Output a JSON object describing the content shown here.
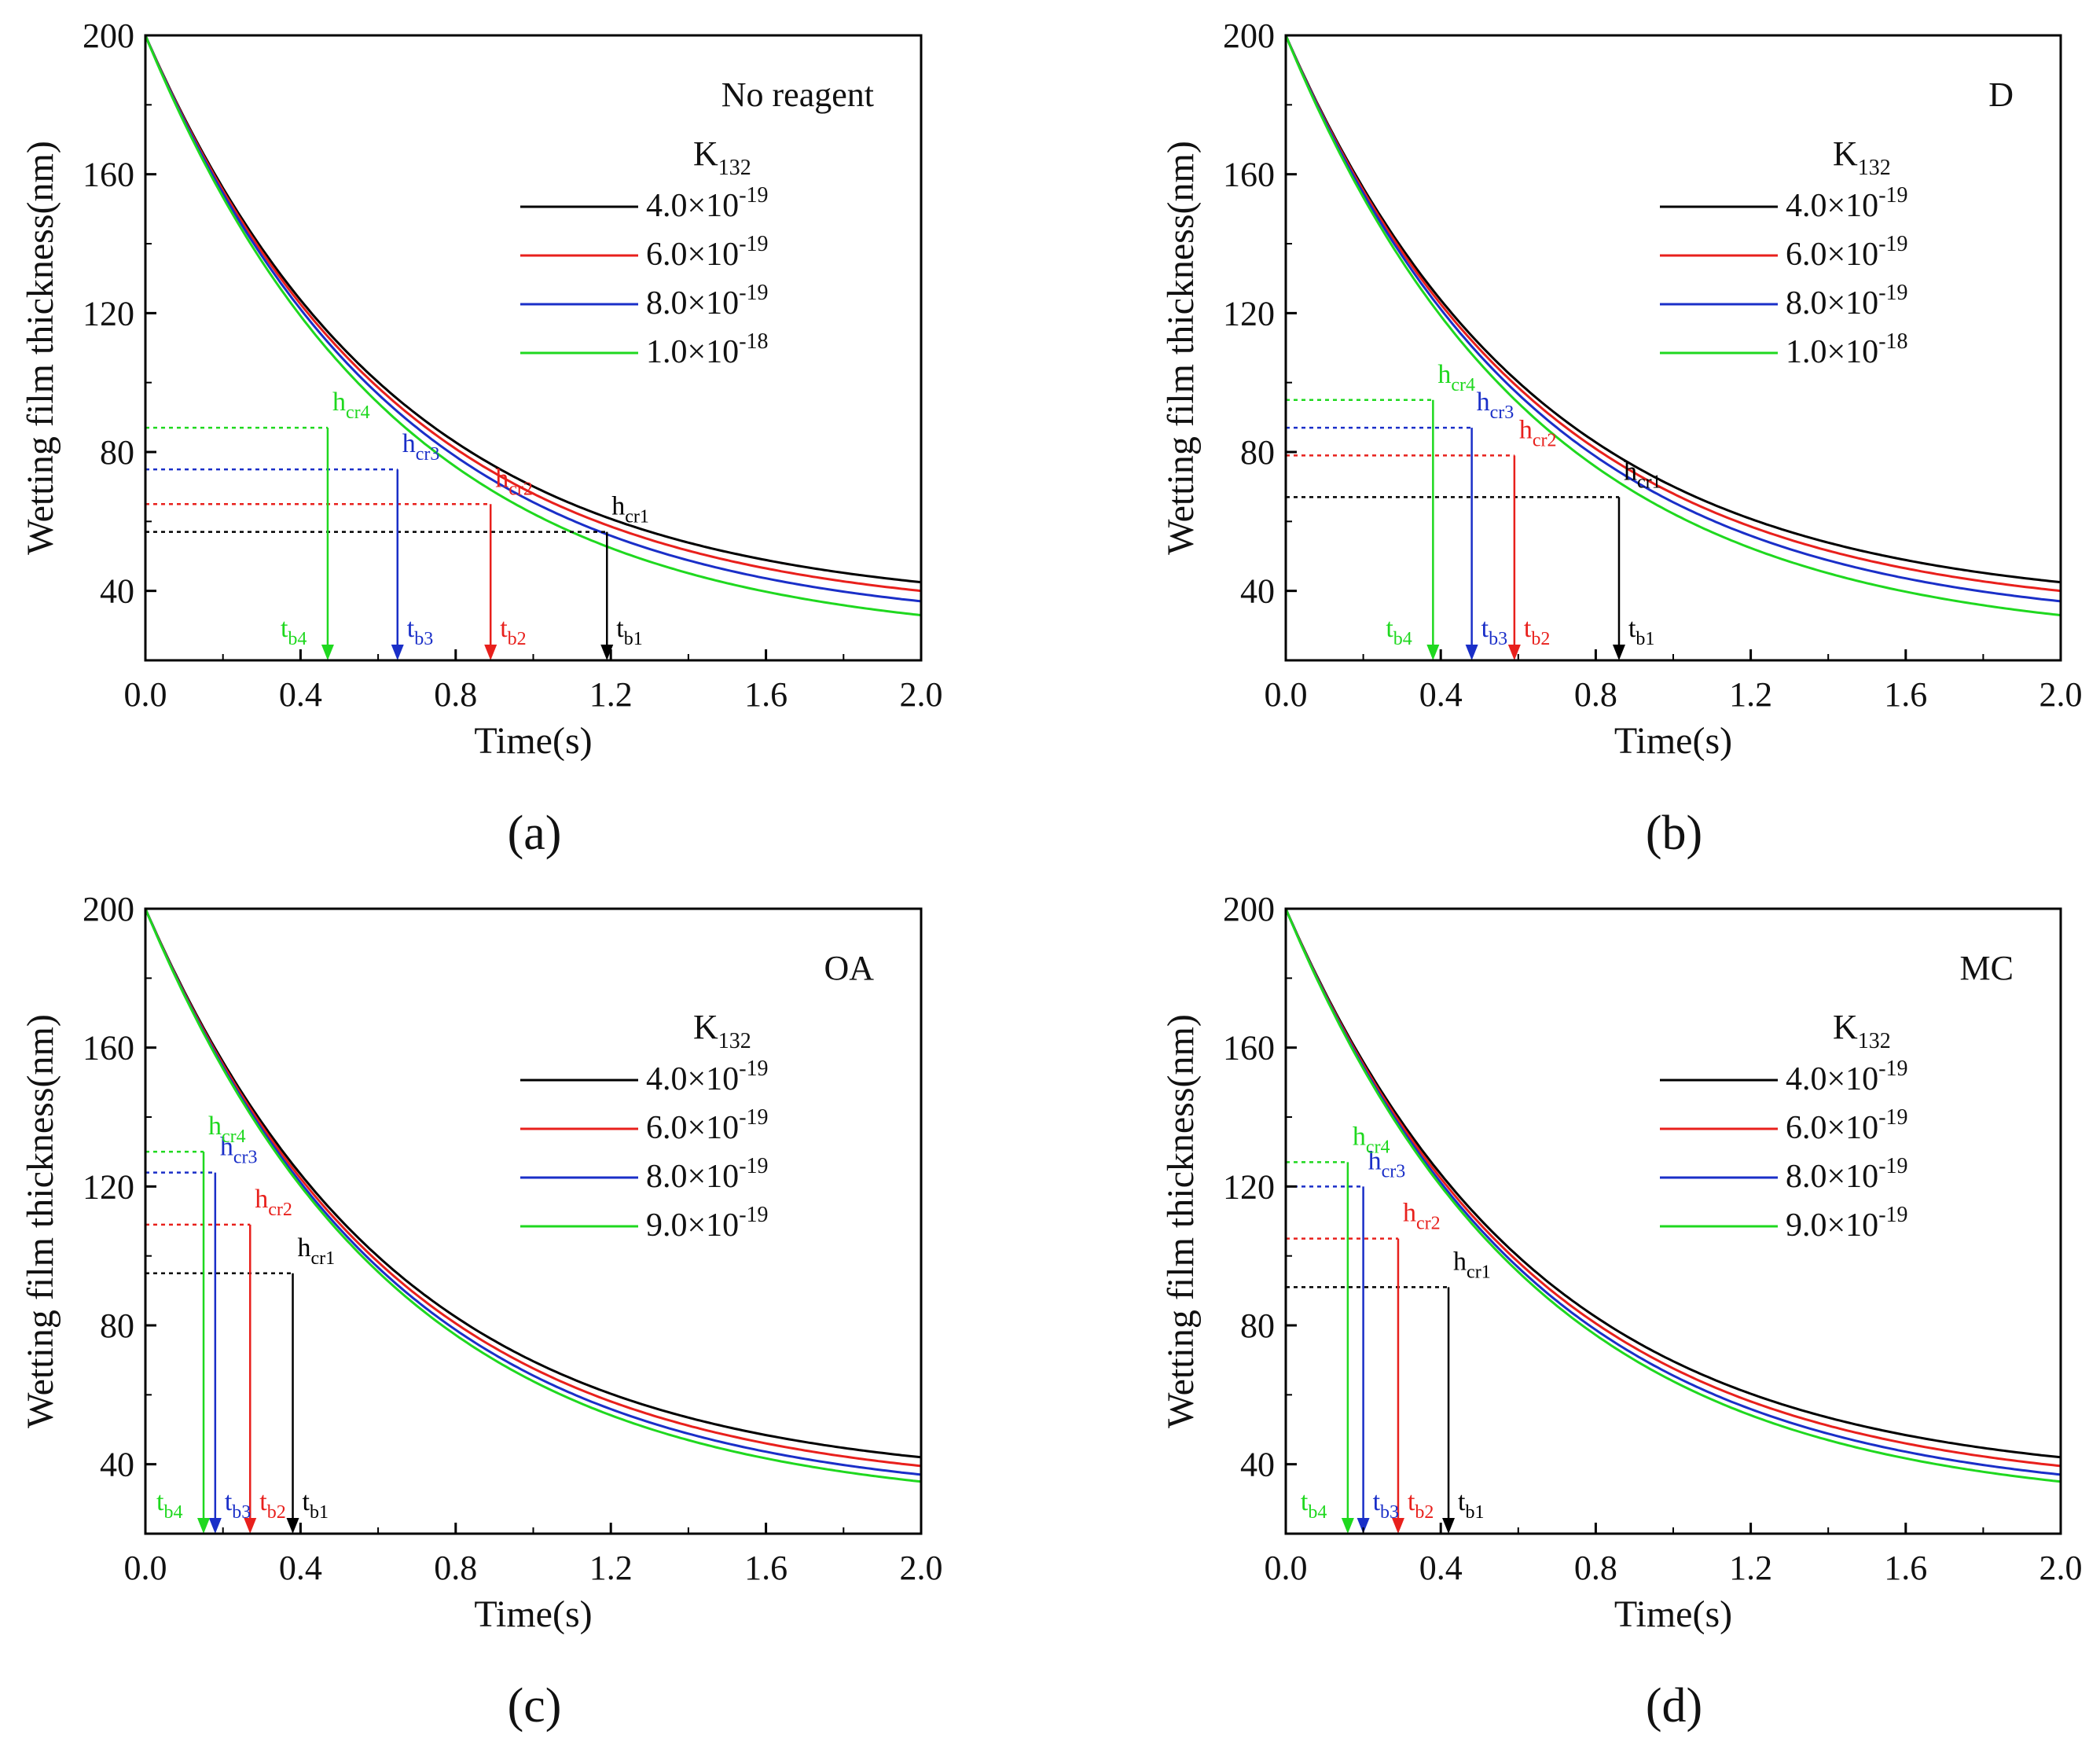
{
  "figure": {
    "description_captions": [
      "(a)",
      "(b)",
      "(c)",
      "(d)"
    ]
  },
  "chart_data": [
    {
      "type": "line",
      "panel": "(a)",
      "legend_title_main": "No reagent",
      "legend_title_sub": "K",
      "legend_title_subscript": "132",
      "xlabel": "Time(s)",
      "ylabel": "Wetting film thickness(nm)",
      "xlim": [
        0,
        2.0
      ],
      "ylim": [
        20,
        200
      ],
      "xticks": [
        "0.0",
        "0.4",
        "0.8",
        "1.2",
        "1.6",
        "2.0"
      ],
      "yticks": [
        "40",
        "80",
        "120",
        "160",
        "200"
      ],
      "series": [
        {
          "name_mant": "4.0×10",
          "name_exp": "-19",
          "color": "#000000",
          "end_value": 42.5,
          "h_cr": 57,
          "t_b": 1.19,
          "h_label_base": "h",
          "h_label_sub": "cr1",
          "t_label_base": "t",
          "t_label_sub": "b1"
        },
        {
          "name_mant": "6.0×10",
          "name_exp": "-19",
          "color": "#e8201c",
          "end_value": 40,
          "h_cr": 65,
          "t_b": 0.89,
          "h_label_base": "h",
          "h_label_sub": "cr2",
          "t_label_base": "t",
          "t_label_sub": "b2"
        },
        {
          "name_mant": "8.0×10",
          "name_exp": "-19",
          "color": "#1a2fc8",
          "end_value": 37,
          "h_cr": 75,
          "t_b": 0.65,
          "h_label_base": "h",
          "h_label_sub": "cr3",
          "t_label_base": "t",
          "t_label_sub": "b3"
        },
        {
          "name_mant": "1.0×10",
          "name_exp": "-18",
          "color": "#1fd81f",
          "end_value": 33,
          "h_cr": 87,
          "t_b": 0.47,
          "h_label_base": "h",
          "h_label_sub": "cr4",
          "t_label_base": "t",
          "t_label_sub": "b4"
        }
      ]
    },
    {
      "type": "line",
      "panel": "(b)",
      "legend_title_main": "D",
      "legend_title_sub": "K",
      "legend_title_subscript": "132",
      "xlabel": "Time(s)",
      "ylabel": "Wetting film thickness(nm)",
      "xlim": [
        0,
        2.0
      ],
      "ylim": [
        20,
        200
      ],
      "xticks": [
        "0.0",
        "0.4",
        "0.8",
        "1.2",
        "1.6",
        "2.0"
      ],
      "yticks": [
        "40",
        "80",
        "120",
        "160",
        "200"
      ],
      "series": [
        {
          "name_mant": "4.0×10",
          "name_exp": "-19",
          "color": "#000000",
          "end_value": 42.5,
          "h_cr": 67,
          "t_b": 0.86,
          "h_label_base": "h",
          "h_label_sub": "cr1",
          "t_label_base": "t",
          "t_label_sub": "b1"
        },
        {
          "name_mant": "6.0×10",
          "name_exp": "-19",
          "color": "#e8201c",
          "end_value": 40,
          "h_cr": 79,
          "t_b": 0.59,
          "h_label_base": "h",
          "h_label_sub": "cr2",
          "t_label_base": "t",
          "t_label_sub": "b2"
        },
        {
          "name_mant": "8.0×10",
          "name_exp": "-19",
          "color": "#1a2fc8",
          "end_value": 37,
          "h_cr": 87,
          "t_b": 0.48,
          "h_label_base": "h",
          "h_label_sub": "cr3",
          "t_label_base": "t",
          "t_label_sub": "b3"
        },
        {
          "name_mant": "1.0×10",
          "name_exp": "-18",
          "color": "#1fd81f",
          "end_value": 33,
          "h_cr": 95,
          "t_b": 0.38,
          "h_label_base": "h",
          "h_label_sub": "cr4",
          "t_label_base": "t",
          "t_label_sub": "b4"
        }
      ]
    },
    {
      "type": "line",
      "panel": "(c)",
      "legend_title_main": "OA",
      "legend_title_sub": "K",
      "legend_title_subscript": "132",
      "xlabel": "Time(s)",
      "ylabel": "Wetting film thickness(nm)",
      "xlim": [
        0,
        2.0
      ],
      "ylim": [
        20,
        200
      ],
      "xticks": [
        "0.0",
        "0.4",
        "0.8",
        "1.2",
        "1.6",
        "2.0"
      ],
      "yticks": [
        "40",
        "80",
        "120",
        "160",
        "200"
      ],
      "series": [
        {
          "name_mant": "4.0×10",
          "name_exp": "-19",
          "color": "#000000",
          "end_value": 42,
          "h_cr": 95,
          "t_b": 0.38,
          "h_label_base": "h",
          "h_label_sub": "cr1",
          "t_label_base": "t",
          "t_label_sub": "b1"
        },
        {
          "name_mant": "6.0×10",
          "name_exp": "-19",
          "color": "#e8201c",
          "end_value": 39.5,
          "h_cr": 109,
          "t_b": 0.27,
          "h_label_base": "h",
          "h_label_sub": "cr2",
          "t_label_base": "t",
          "t_label_sub": "b2"
        },
        {
          "name_mant": "8.0×10",
          "name_exp": "-19",
          "color": "#1a2fc8",
          "end_value": 37,
          "h_cr": 124,
          "t_b": 0.18,
          "h_label_base": "h",
          "h_label_sub": "cr3",
          "t_label_base": "t",
          "t_label_sub": "b3"
        },
        {
          "name_mant": "9.0×10",
          "name_exp": "-19",
          "color": "#1fd81f",
          "end_value": 35,
          "h_cr": 130,
          "t_b": 0.15,
          "h_label_base": "h",
          "h_label_sub": "cr4",
          "t_label_base": "t",
          "t_label_sub": "b4"
        }
      ]
    },
    {
      "type": "line",
      "panel": "(d)",
      "legend_title_main": "MC",
      "legend_title_sub": "K",
      "legend_title_subscript": "132",
      "xlabel": "Time(s)",
      "ylabel": "Wetting film thickness(nm)",
      "xlim": [
        0,
        2.0
      ],
      "ylim": [
        20,
        200
      ],
      "xticks": [
        "0.0",
        "0.4",
        "0.8",
        "1.2",
        "1.6",
        "2.0"
      ],
      "yticks": [
        "40",
        "80",
        "120",
        "160",
        "200"
      ],
      "series": [
        {
          "name_mant": "4.0×10",
          "name_exp": "-19",
          "color": "#000000",
          "end_value": 42,
          "h_cr": 91,
          "t_b": 0.42,
          "h_label_base": "h",
          "h_label_sub": "cr1",
          "t_label_base": "t",
          "t_label_sub": "b1"
        },
        {
          "name_mant": "6.0×10",
          "name_exp": "-19",
          "color": "#e8201c",
          "end_value": 39.5,
          "h_cr": 105,
          "t_b": 0.29,
          "h_label_base": "h",
          "h_label_sub": "cr2",
          "t_label_base": "t",
          "t_label_sub": "b2"
        },
        {
          "name_mant": "8.0×10",
          "name_exp": "-19",
          "color": "#1a2fc8",
          "end_value": 37,
          "h_cr": 120,
          "t_b": 0.2,
          "h_label_base": "h",
          "h_label_sub": "cr3",
          "t_label_base": "t",
          "t_label_sub": "b3"
        },
        {
          "name_mant": "9.0×10",
          "name_exp": "-19",
          "color": "#1fd81f",
          "end_value": 35,
          "h_cr": 127,
          "t_b": 0.16,
          "h_label_base": "h",
          "h_label_sub": "cr4",
          "t_label_base": "t",
          "t_label_sub": "b4"
        }
      ]
    }
  ]
}
